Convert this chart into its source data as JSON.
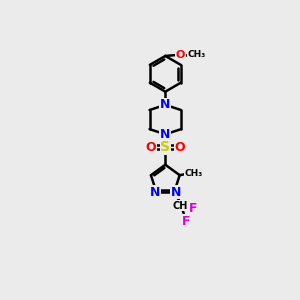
{
  "bg_color": "#ebebeb",
  "bond_color": "#000000",
  "N_color": "#0000ff",
  "O_color": "#ff0000",
  "S_color": "#cccc00",
  "F_color": "#dd00dd",
  "linewidth": 1.8,
  "fig_width": 3.0,
  "fig_height": 3.0,
  "dpi": 100,
  "xlim": [
    -3.5,
    3.5
  ],
  "ylim": [
    -5.5,
    5.5
  ]
}
